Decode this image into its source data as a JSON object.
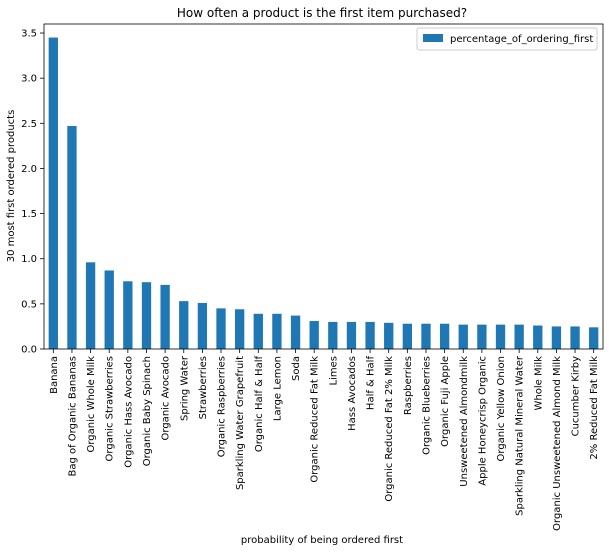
{
  "chart_data": {
    "type": "bar",
    "title": "How often a product is the first item purchased?",
    "xlabel": "probability of being ordered first",
    "ylabel": "30 most first ordered products",
    "ylim": [
      0,
      3.6
    ],
    "yticks": [
      "0.0",
      "0.5",
      "1.0",
      "1.5",
      "2.0",
      "2.5",
      "3.0",
      "3.5"
    ],
    "legend_position": "top-right",
    "grid": false,
    "categories": [
      "Banana",
      "Bag of Organic Bananas",
      "Organic Whole Milk",
      "Organic Strawberries",
      "Organic Hass Avocado",
      "Organic Baby Spinach",
      "Organic Avocado",
      "Spring Water",
      "Strawberries",
      "Organic Raspberries",
      "Sparkling Water Grapefruit",
      "Organic Half & Half",
      "Large Lemon",
      "Soda",
      "Organic Reduced Fat Milk",
      "Limes",
      "Hass Avocados",
      "Half & Half",
      "Organic Reduced Fat 2% Milk",
      "Raspberries",
      "Organic Blueberries",
      "Organic Fuji Apple",
      "Unsweetened Almondmilk",
      "Apple Honeycrisp Organic",
      "Organic Yellow Onion",
      "Sparkling Natural Mineral Water",
      "Whole Milk",
      "Organic Unsweetened Almond Milk",
      "Cucumber Kirby",
      "2% Reduced Fat Milk"
    ],
    "series": [
      {
        "name": "percentage_of_ordering_first",
        "color": "#1f77b4",
        "values": [
          3.45,
          2.47,
          0.96,
          0.87,
          0.75,
          0.74,
          0.71,
          0.53,
          0.51,
          0.45,
          0.44,
          0.39,
          0.39,
          0.37,
          0.31,
          0.3,
          0.3,
          0.3,
          0.29,
          0.28,
          0.28,
          0.28,
          0.27,
          0.27,
          0.27,
          0.27,
          0.26,
          0.25,
          0.25,
          0.24
        ]
      }
    ]
  }
}
